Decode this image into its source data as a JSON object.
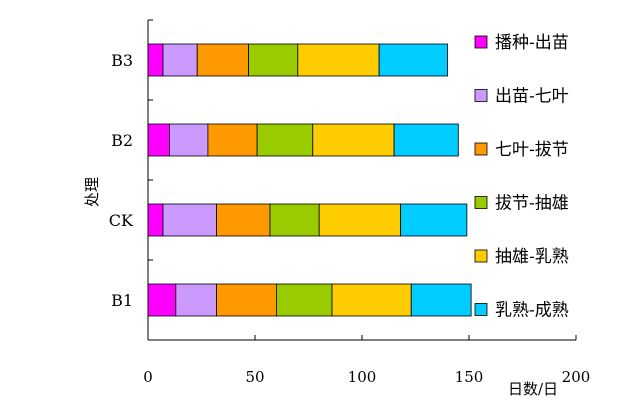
{
  "chart_data": {
    "type": "bar",
    "orientation": "horizontal",
    "stacked": true,
    "categories": [
      "B3",
      "B2",
      "CK",
      "B1"
    ],
    "xlabel": "日数/日",
    "ylabel": "处理",
    "xlim": [
      0,
      200
    ],
    "xticks": [
      0,
      50,
      100,
      150,
      200
    ],
    "grid": false,
    "legend_position": "right",
    "series": [
      {
        "name": "播种-出苗",
        "color": "#ff00ff",
        "values": [
          7,
          10,
          7,
          13
        ]
      },
      {
        "name": "出苗-七叶",
        "color": "#cc99ff",
        "values": [
          16,
          18,
          25,
          19
        ]
      },
      {
        "name": "七叶-拔节",
        "color": "#ff9900",
        "values": [
          24,
          23,
          25,
          28
        ]
      },
      {
        "name": "拔节-抽雄",
        "color": "#99cc00",
        "values": [
          23,
          26,
          23,
          26
        ]
      },
      {
        "name": "抽雄-乳熟",
        "color": "#ffcc00",
        "values": [
          38,
          38,
          38,
          37
        ]
      },
      {
        "name": "乳熟-成熟",
        "color": "#00ccff",
        "values": [
          32,
          30,
          31,
          28
        ]
      }
    ]
  }
}
